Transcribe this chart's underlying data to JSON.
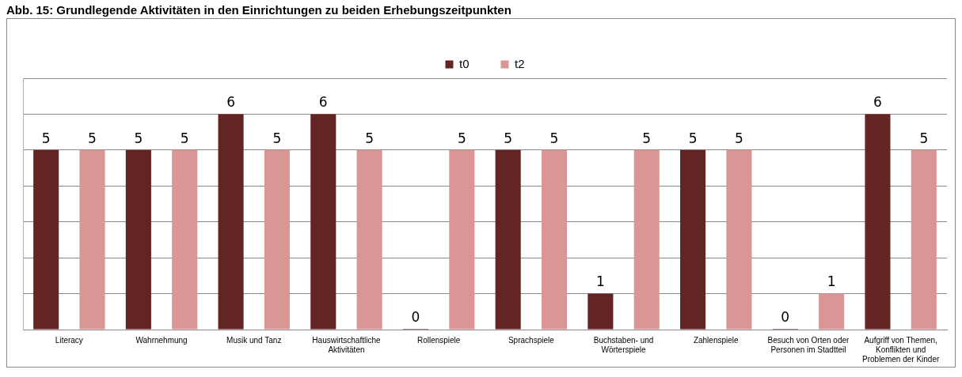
{
  "chart_data": {
    "type": "bar",
    "title": "Abb. 15: Grundlegende Aktivitäten in den Einrichtungen zu beiden Erhebungszeitpunkten",
    "categories": [
      "Literacy",
      "Wahrnehmung",
      "Musik und Tanz",
      "Hauswirtschaftliche Aktivitäten",
      "Rollenspiele",
      "Sprachspiele",
      "Buchstaben- und Wörterspiele",
      "Zahlenspiele",
      "Besuch von Orten oder Personen im Stadtteil",
      "Aufgriff von Themen, Konflikten und Problemen der Kinder"
    ],
    "series": [
      {
        "name": "t0",
        "color": "#632523",
        "values": [
          5,
          5,
          6,
          6,
          0,
          5,
          1,
          5,
          0,
          6
        ]
      },
      {
        "name": "t2",
        "color": "#d99694",
        "values": [
          5,
          5,
          5,
          5,
          5,
          5,
          5,
          5,
          1,
          5
        ]
      }
    ],
    "ylim": [
      0,
      7
    ],
    "yticks": [
      0,
      1,
      2,
      3,
      4,
      5,
      6,
      7
    ],
    "tick_labels": "x",
    "grid": "y",
    "legend": "top",
    "data_labels": true
  }
}
